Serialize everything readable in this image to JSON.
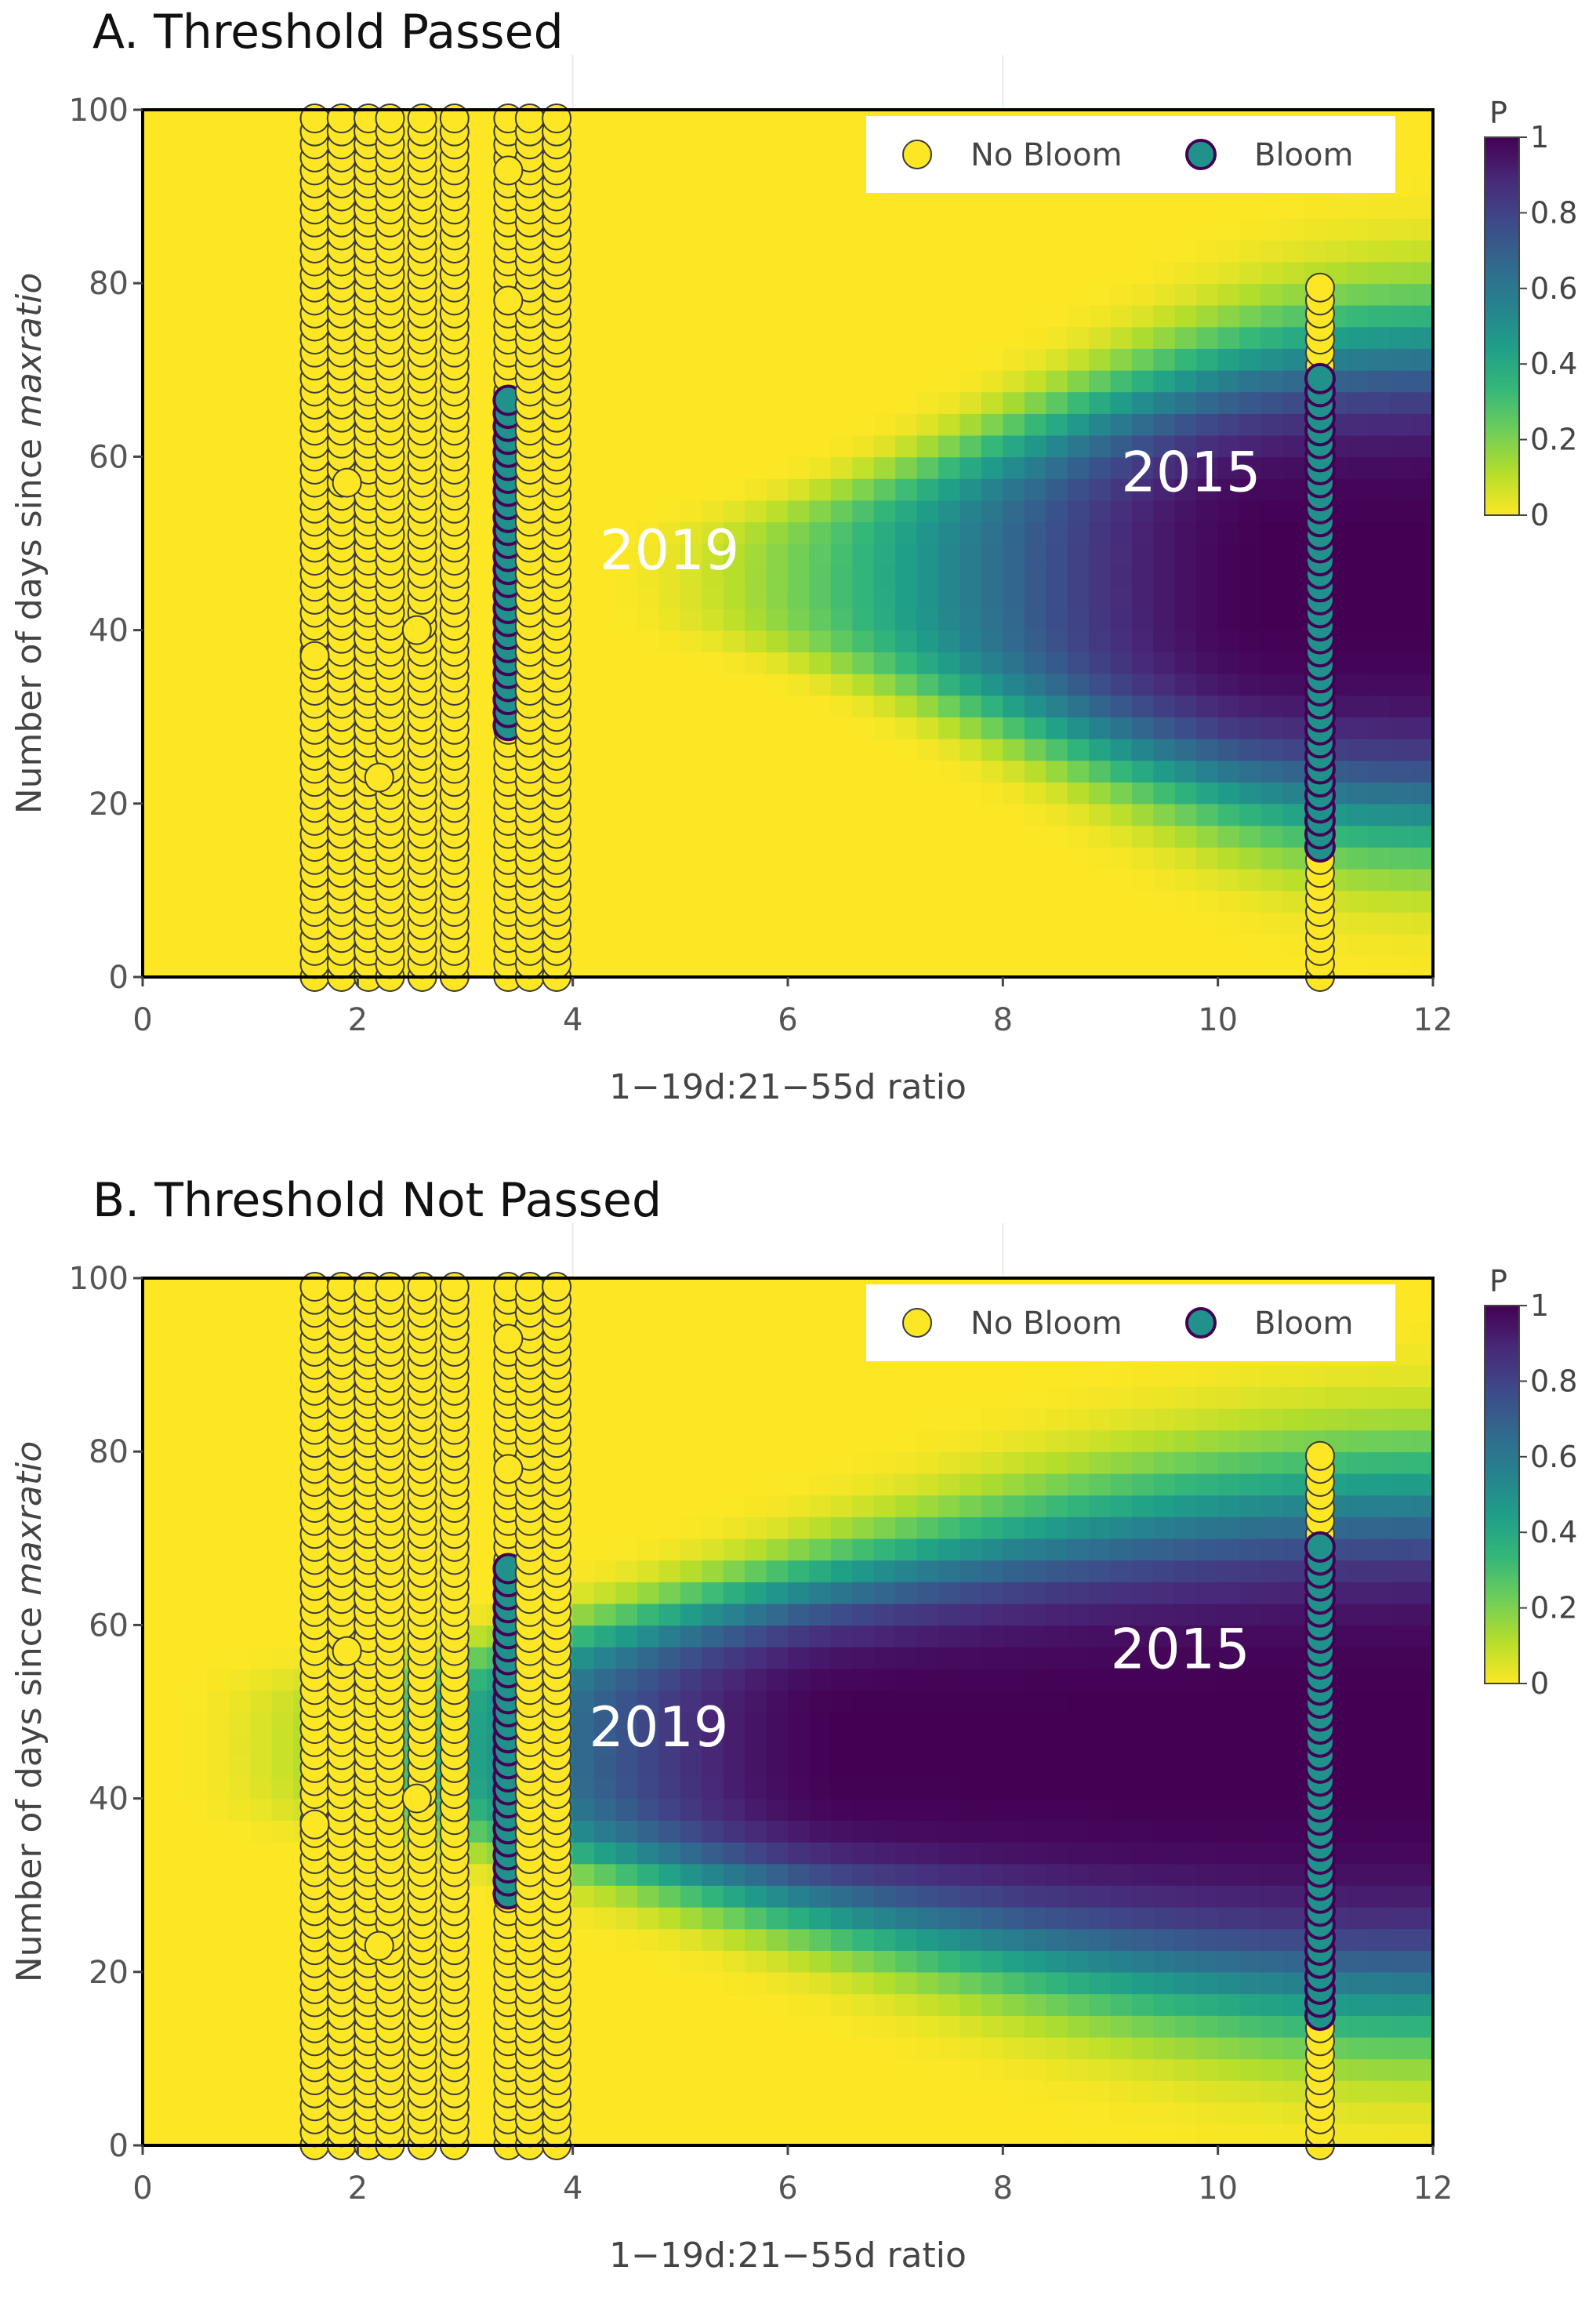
{
  "chart_data": [
    {
      "type": "heatmap",
      "title": "A. Threshold Passed",
      "xlabel": "1−19d:21−55d ratio",
      "ylabel_prefix": "Number of days since ",
      "ylabel_italic": "maxratio",
      "xlim": [
        0,
        12
      ],
      "ylim": [
        0,
        100
      ],
      "x_ticks": [
        "0",
        "2",
        "4",
        "6",
        "8",
        "10",
        "12"
      ],
      "y_ticks": [
        "0",
        "20",
        "40",
        "60",
        "80",
        "100"
      ],
      "colorbar_title": "P",
      "colorbar_ticks": [
        "0",
        "0.2",
        "0.4",
        "0.6",
        "0.8",
        "1"
      ],
      "colorscale": [
        "#fde725",
        "#b5de2b",
        "#6ece58",
        "#35b779",
        "#1f9e89",
        "#26828e",
        "#31688e",
        "#3e4989",
        "#482878",
        "#440154"
      ],
      "surface": {
        "x_onset": 4.2,
        "x_sat": 10.5,
        "y_center": 46,
        "hw_min": 6,
        "hw_max": 30
      },
      "legend": {
        "no_bloom": "No Bloom",
        "bloom": "Bloom"
      },
      "series_colors": {
        "no_bloom_fill": "#fde725",
        "bloom_fill": "#21918c",
        "bloom_edge": "#440154"
      },
      "columns": [
        {
          "x": 1.6,
          "no_bloom_y": [
            0,
            99
          ],
          "bloom_y": []
        },
        {
          "x": 1.85,
          "no_bloom_y": [
            0,
            99
          ],
          "bloom_y": []
        },
        {
          "x": 2.1,
          "no_bloom_y": [
            0,
            99
          ],
          "bloom_y": []
        },
        {
          "x": 2.3,
          "no_bloom_y": [
            0,
            99
          ],
          "bloom_y": []
        },
        {
          "x": 2.6,
          "no_bloom_y": [
            0,
            99
          ],
          "bloom_y": []
        },
        {
          "x": 2.9,
          "no_bloom_y": [
            0,
            99
          ],
          "bloom_y": []
        },
        {
          "x": 3.4,
          "no_bloom_y": [
            0,
            99
          ],
          "bloom_y": [
            29,
            67
          ]
        },
        {
          "x": 3.6,
          "no_bloom_y": [
            0,
            99
          ],
          "bloom_y": []
        },
        {
          "x": 3.85,
          "no_bloom_y": [
            0,
            99
          ],
          "bloom_y": []
        },
        {
          "x": 10.95,
          "no_bloom_y": [
            0,
            80
          ],
          "bloom_y": [
            15,
            69
          ]
        }
      ],
      "extra_points": [
        {
          "x": 1.6,
          "y": 37
        },
        {
          "x": 1.9,
          "y": 57
        },
        {
          "x": 2.2,
          "y": 23
        },
        {
          "x": 2.55,
          "y": 40
        },
        {
          "x": 3.4,
          "y": 78
        },
        {
          "x": 3.4,
          "y": 93
        }
      ],
      "annotations": [
        {
          "text": "2019",
          "x": 4.9,
          "y": 47
        },
        {
          "text": "2015",
          "x": 9.75,
          "y": 56
        }
      ]
    },
    {
      "type": "heatmap",
      "title": "B. Threshold Not Passed",
      "xlabel": "1−19d:21−55d ratio",
      "ylabel_prefix": "Number of days since ",
      "ylabel_italic": "maxratio",
      "xlim": [
        0,
        12
      ],
      "ylim": [
        0,
        100
      ],
      "x_ticks": [
        "0",
        "2",
        "4",
        "6",
        "8",
        "10",
        "12"
      ],
      "y_ticks": [
        "0",
        "20",
        "40",
        "60",
        "80",
        "100"
      ],
      "colorbar_title": "P",
      "colorbar_ticks": [
        "0",
        "0.2",
        "0.4",
        "0.6",
        "0.8",
        "1"
      ],
      "colorscale": [
        "#fde725",
        "#b5de2b",
        "#6ece58",
        "#35b779",
        "#1f9e89",
        "#26828e",
        "#31688e",
        "#3e4989",
        "#482878",
        "#440154"
      ],
      "surface": {
        "x_onset": 0.2,
        "x_sat": 6.6,
        "y_center": 46,
        "hw_min": 8,
        "hw_max": 32
      },
      "legend": {
        "no_bloom": "No Bloom",
        "bloom": "Bloom"
      },
      "series_colors": {
        "no_bloom_fill": "#fde725",
        "bloom_fill": "#21918c",
        "bloom_edge": "#440154"
      },
      "columns": [
        {
          "x": 1.6,
          "no_bloom_y": [
            0,
            99
          ],
          "bloom_y": []
        },
        {
          "x": 1.85,
          "no_bloom_y": [
            0,
            99
          ],
          "bloom_y": []
        },
        {
          "x": 2.1,
          "no_bloom_y": [
            0,
            99
          ],
          "bloom_y": []
        },
        {
          "x": 2.3,
          "no_bloom_y": [
            0,
            99
          ],
          "bloom_y": []
        },
        {
          "x": 2.6,
          "no_bloom_y": [
            0,
            99
          ],
          "bloom_y": []
        },
        {
          "x": 2.9,
          "no_bloom_y": [
            0,
            99
          ],
          "bloom_y": []
        },
        {
          "x": 3.4,
          "no_bloom_y": [
            0,
            99
          ],
          "bloom_y": [
            29,
            67
          ]
        },
        {
          "x": 3.6,
          "no_bloom_y": [
            0,
            99
          ],
          "bloom_y": []
        },
        {
          "x": 3.85,
          "no_bloom_y": [
            0,
            99
          ],
          "bloom_y": []
        },
        {
          "x": 10.95,
          "no_bloom_y": [
            0,
            80
          ],
          "bloom_y": [
            15,
            69
          ]
        }
      ],
      "extra_points": [
        {
          "x": 1.6,
          "y": 37
        },
        {
          "x": 1.9,
          "y": 57
        },
        {
          "x": 2.2,
          "y": 23
        },
        {
          "x": 2.55,
          "y": 40
        },
        {
          "x": 3.4,
          "y": 78
        },
        {
          "x": 3.4,
          "y": 93
        }
      ],
      "annotations": [
        {
          "text": "2019",
          "x": 4.8,
          "y": 46
        },
        {
          "text": "2015",
          "x": 9.65,
          "y": 55
        }
      ]
    }
  ]
}
